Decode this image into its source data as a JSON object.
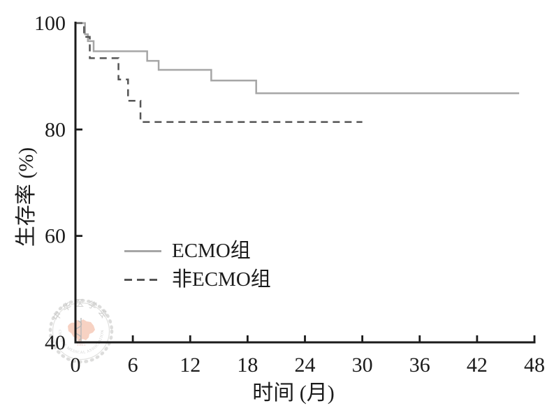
{
  "chart_data": {
    "type": "line",
    "subtype": "kaplan-meier-step",
    "title": "",
    "xlabel": "时间 (月)",
    "ylabel": "生存率 (%)",
    "xlim": [
      0,
      48
    ],
    "ylim": [
      40,
      100
    ],
    "x_ticks": [
      0,
      6,
      12,
      18,
      24,
      30,
      36,
      42,
      48
    ],
    "y_ticks": [
      100,
      80,
      60,
      40
    ],
    "y_ticks_with_marks": [
      80,
      60
    ],
    "grid": false,
    "legend_position": "inside-lower-left",
    "axis_color": "#1b1b1b",
    "series": [
      {
        "name": "ECMO组",
        "style": "solid",
        "color": "#a6a6a6",
        "steps": [
          [
            0,
            100
          ],
          [
            1.0,
            97.9
          ],
          [
            1.3,
            96.6
          ],
          [
            1.9,
            94.7
          ],
          [
            7.5,
            92.9
          ],
          [
            8.7,
            91.2
          ],
          [
            14.2,
            89.2
          ],
          [
            18.9,
            86.8
          ]
        ],
        "end_x": 46.4
      },
      {
        "name": "非ECMO组",
        "style": "dashed",
        "color": "#555555",
        "steps": [
          [
            0,
            100
          ],
          [
            0.9,
            97.4
          ],
          [
            1.5,
            93.4
          ],
          [
            4.5,
            89.4
          ],
          [
            5.5,
            85.4
          ],
          [
            6.8,
            81.4
          ]
        ],
        "end_x": 30.0
      }
    ]
  },
  "watermark": {
    "org_cn": "中华医学会",
    "org_en": "CHINESE MEDICAL ASSOCIATION",
    "year": "1915",
    "map_color": "#f2ae94",
    "ring_color": "#c9c9c7",
    "text_color": "#aeaeac"
  }
}
